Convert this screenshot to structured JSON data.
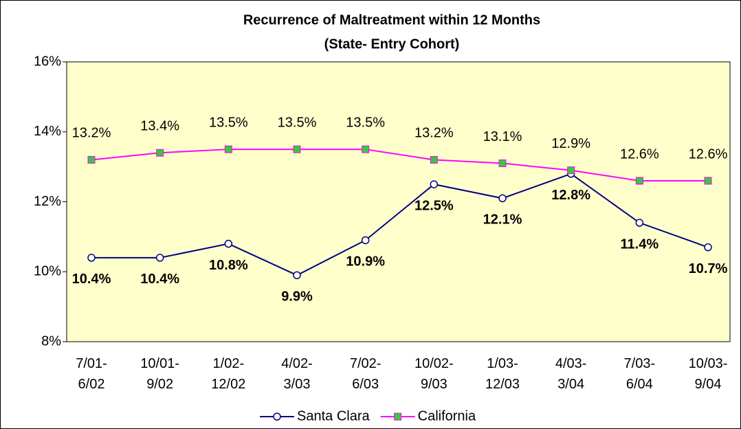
{
  "chart_data": {
    "type": "line",
    "title": "Recurrence of Maltreatment within 12 Months",
    "subtitle": "(State- Entry Cohort)",
    "categories": [
      "7/01- 6/02",
      "10/01- 9/02",
      "1/02- 12/02",
      "4/02- 3/03",
      "7/02- 6/03",
      "10/02- 9/03",
      "1/03- 12/03",
      "4/03- 3/04",
      "7/03- 6/04",
      "10/03- 9/04"
    ],
    "series": [
      {
        "name": "Santa Clara",
        "color": "#000080",
        "marker": "circle",
        "marker_color": "#ffffff",
        "values": [
          10.4,
          10.4,
          10.8,
          9.9,
          10.9,
          12.5,
          12.1,
          12.8,
          11.4,
          10.7
        ],
        "value_labels": [
          "10.4%",
          "10.4%",
          "10.8%",
          "9.9%",
          "10.9%",
          "12.5%",
          "12.1%",
          "12.8%",
          "11.4%",
          "10.7%"
        ]
      },
      {
        "name": "California",
        "color": "#ff00ff",
        "marker": "square",
        "marker_color": "#33cc33",
        "values": [
          13.2,
          13.4,
          13.5,
          13.5,
          13.5,
          13.2,
          13.1,
          12.9,
          12.6,
          12.6
        ],
        "value_labels": [
          "13.2%",
          "13.4%",
          "13.5%",
          "13.5%",
          "13.5%",
          "13.2%",
          "13.1%",
          "12.9%",
          "12.6%",
          "12.6%"
        ]
      }
    ],
    "ylim": [
      8,
      16
    ],
    "yticks": [
      {
        "value": 8,
        "label": "8%"
      },
      {
        "value": 10,
        "label": "10%"
      },
      {
        "value": 12,
        "label": "12%"
      },
      {
        "value": 14,
        "label": "14%"
      },
      {
        "value": 16,
        "label": "16%"
      }
    ],
    "grid": false,
    "legend": "bottom",
    "plot_background": "#ffffcc"
  }
}
